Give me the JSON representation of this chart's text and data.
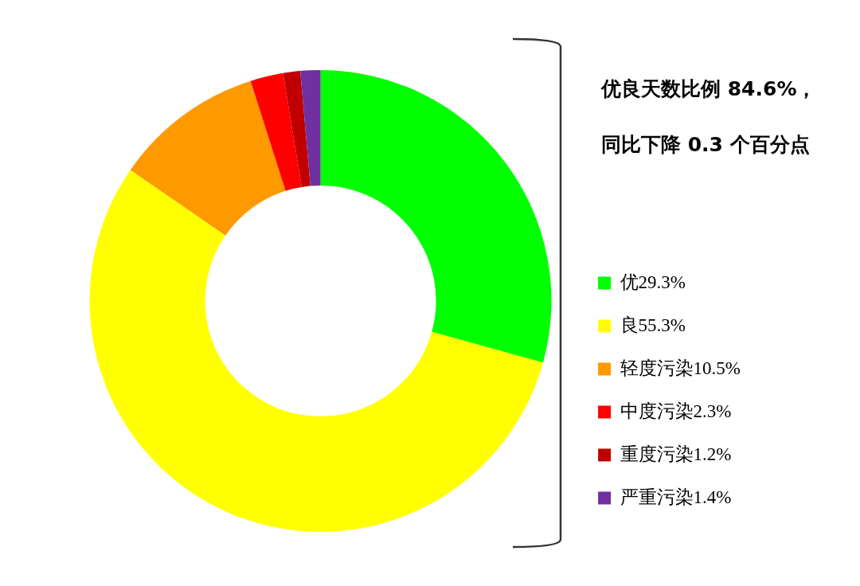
{
  "chart_data": {
    "type": "donut",
    "categories": [
      "优29.3%",
      "良55.3%",
      "轻度污染10.5%",
      "中度污染2.3%",
      "重度污染1.2%",
      "严重污染1.4%"
    ],
    "values": [
      29.3,
      55.3,
      10.5,
      2.3,
      1.2,
      1.4
    ],
    "colors": [
      "#00ff00",
      "#ffff00",
      "#ff9900",
      "#ff0000",
      "#c00000",
      "#7030a0"
    ],
    "legend": "bottom right",
    "annotations": [
      "优良天数比例 84.6%，",
      "同比下降 0.3 个百分点"
    ]
  }
}
